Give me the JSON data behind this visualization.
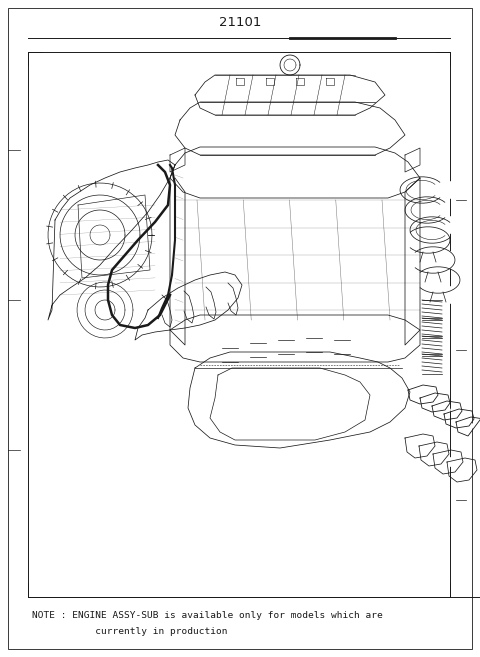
{
  "background_color": "#ffffff",
  "title_number": "21101",
  "note_line1": "NOTE : ENGINE ASSY-SUB is available only for models which are",
  "note_line2": "           currently in production",
  "title_fontsize": 9.5,
  "note_fontsize": 6.8,
  "diagram_color": "#1a1a1a",
  "fig_width": 4.8,
  "fig_height": 6.57,
  "dpi": 100
}
